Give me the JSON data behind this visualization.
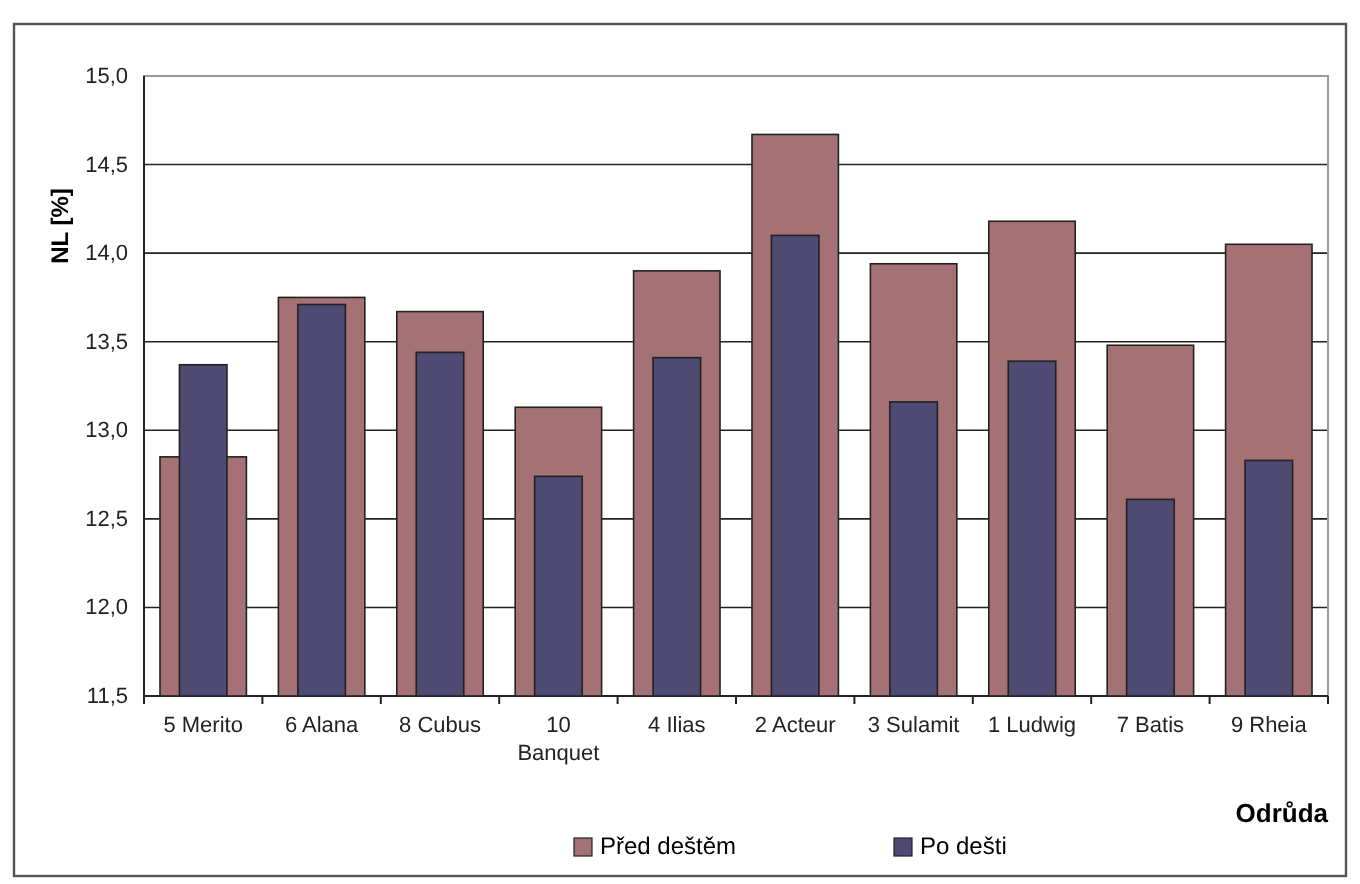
{
  "chart_data": {
    "type": "bar",
    "xlabel": "Odrůda",
    "ylabel": "NL [%]",
    "categories": [
      "5 Merito",
      "6 Alana",
      "8 Cubus",
      "10 Banquet",
      "4 Ilias",
      "2 Acteur",
      "3 Sulamit",
      "1 Ludwig",
      "7 Batis",
      "9 Rheia"
    ],
    "series": [
      {
        "name": "Před deštěm",
        "color": "#a47274",
        "values": [
          12.85,
          13.75,
          13.67,
          13.13,
          13.9,
          14.67,
          13.94,
          14.18,
          13.48,
          14.05
        ]
      },
      {
        "name": "Po dešti",
        "color": "#4e4a72",
        "values": [
          13.37,
          13.71,
          13.44,
          12.74,
          13.41,
          14.1,
          13.16,
          13.39,
          12.61,
          12.83
        ]
      }
    ],
    "ylim": [
      11.5,
      15
    ],
    "yticks": [
      {
        "value": 11.5,
        "label": "11,5"
      },
      {
        "value": 12,
        "label": "12,0"
      },
      {
        "value": 12.5,
        "label": "12,5"
      },
      {
        "value": 13,
        "label": "13,0"
      },
      {
        "value": 13.5,
        "label": "13,5"
      },
      {
        "value": 14,
        "label": "14,0"
      },
      {
        "value": 14.5,
        "label": "14,5"
      },
      {
        "value": 15,
        "label": "15,0"
      }
    ],
    "grid": "y",
    "legend": "bottom"
  }
}
